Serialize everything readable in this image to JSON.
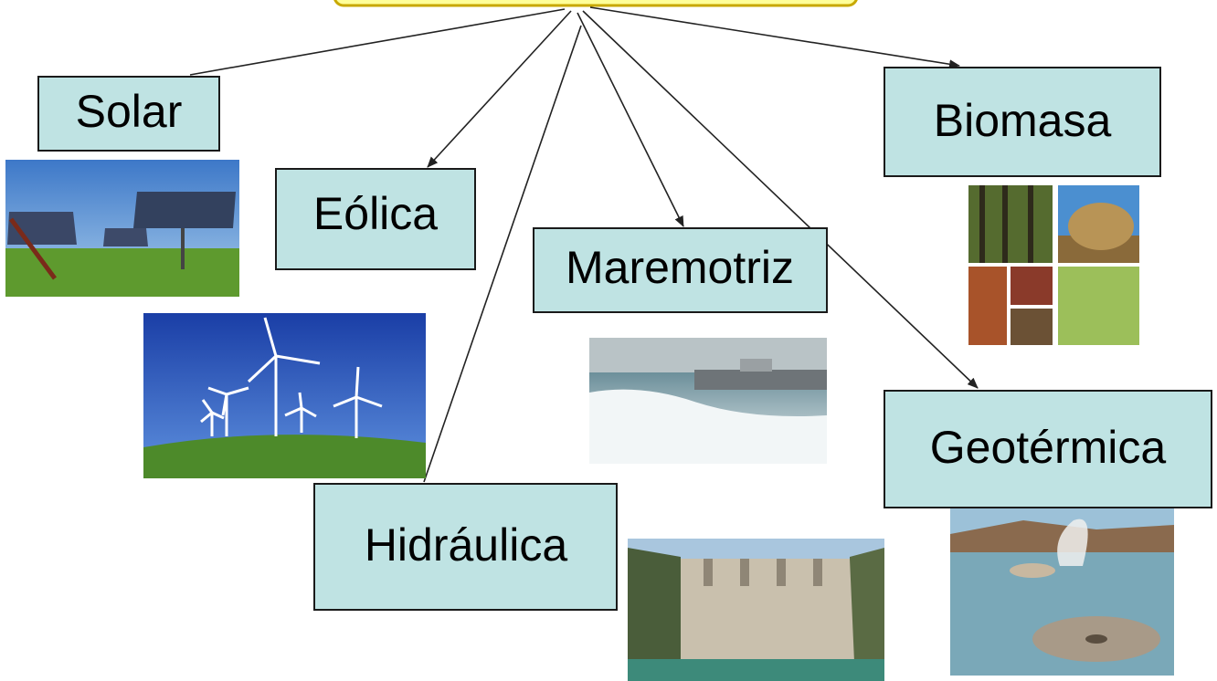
{
  "nodes": [
    {
      "label": "Solar"
    },
    {
      "label": "Eólica"
    },
    {
      "label": "Maremotriz"
    },
    {
      "label": "Biomasa"
    },
    {
      "label": "Geotérmica"
    },
    {
      "label": "Hidráulica"
    }
  ]
}
